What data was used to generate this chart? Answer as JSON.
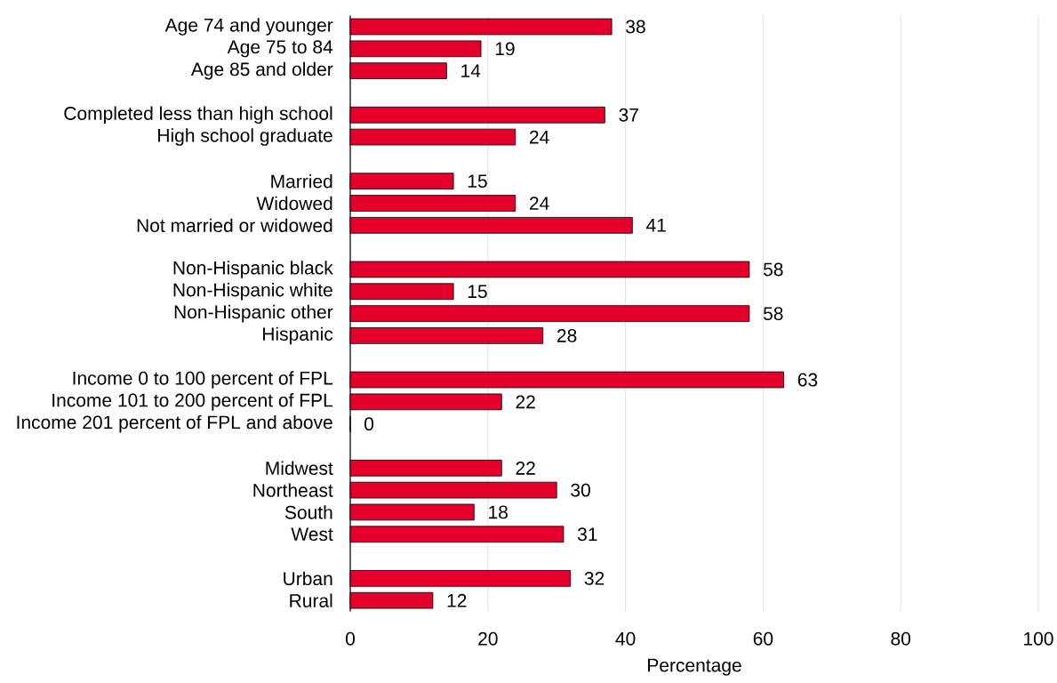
{
  "chart_data": {
    "type": "bar",
    "orientation": "horizontal",
    "categories": [
      "Age 74 and younger",
      "Age 75 to 84",
      "Age 85 and older",
      null,
      "Completed less than high school",
      "High school graduate",
      null,
      "Married",
      "Widowed",
      "Not married or widowed",
      null,
      "Non-Hispanic black",
      "Non-Hispanic white",
      "Non-Hispanic other",
      "Hispanic",
      null,
      "Income 0 to 100 percent of FPL",
      "Income 101 to 200 percent of FPL",
      "Income 201 percent of FPL and above",
      null,
      "Midwest",
      "Northeast",
      "South",
      "West",
      null,
      "Urban",
      "Rural"
    ],
    "values": [
      38,
      19,
      14,
      null,
      37,
      24,
      null,
      15,
      24,
      41,
      null,
      58,
      15,
      58,
      28,
      null,
      63,
      22,
      0,
      null,
      22,
      30,
      18,
      31,
      null,
      32,
      12
    ],
    "color": "#e4002b",
    "xlim": [
      0,
      100
    ],
    "xticks": [
      0,
      20,
      40,
      60,
      80,
      100
    ],
    "xlabel": "Percentage",
    "grid": "x",
    "data_labels": true
  }
}
